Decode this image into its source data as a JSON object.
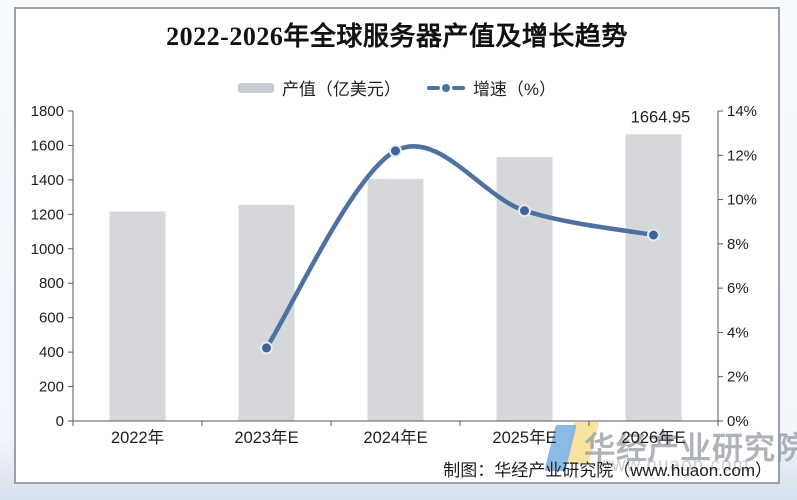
{
  "page": {
    "background": "#eef3f8",
    "frame_border_color": "#9ba1a9",
    "frame_background": "#ffffff"
  },
  "chart_data": {
    "type": "bar+line",
    "title": "2022-2026年全球服务器产值及增长趋势",
    "categories": [
      "2022年",
      "2023年E",
      "2024年E",
      "2025年E",
      "2026年E"
    ],
    "series": [
      {
        "name": "产值（亿美元）",
        "type": "bar",
        "axis": "left",
        "color": "#d5d7da",
        "values": [
          1216,
          1255,
          1406,
          1532,
          1664.95
        ]
      },
      {
        "name": "增速（%）",
        "type": "line",
        "axis": "right",
        "color": "#4e719f",
        "marker_fill": "#3f639a",
        "marker_ring": "#e6ecf3",
        "values": [
          null,
          3.3,
          12.2,
          9.5,
          8.4
        ]
      }
    ],
    "left_axis": {
      "min": 0,
      "max": 1800,
      "step": 200
    },
    "right_axis": {
      "min": 0,
      "max": 14,
      "step": 2,
      "suffix": "%"
    },
    "data_labels": [
      {
        "series": 0,
        "index": 4,
        "text": "1664.95"
      }
    ],
    "legend_position": "top-center",
    "grid": false,
    "axis_color": "#5a5a5a"
  },
  "footer": {
    "credit": "制图：华经产业研究院（www.huaon.com）"
  },
  "watermark": {
    "brand": "华经产业研究院",
    "url": "www.huaon.com",
    "logo_blue": "#7cb1e3",
    "logo_yellow": "#f7e296"
  }
}
